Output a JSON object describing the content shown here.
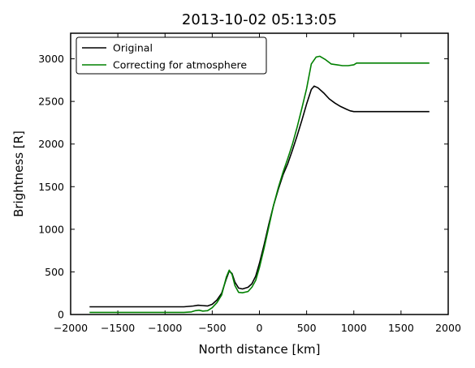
{
  "chart_data": {
    "type": "line",
    "title": "2013-10-02 05:13:05",
    "xlabel": "North distance [km]",
    "ylabel": "Brightness [R]",
    "xlim": [
      -2000,
      2000
    ],
    "ylim": [
      0,
      3300
    ],
    "xticks": [
      -2000,
      -1500,
      -1000,
      -500,
      0,
      500,
      1000,
      1500,
      2000
    ],
    "yticks": [
      0,
      500,
      1000,
      1500,
      2000,
      2500,
      3000
    ],
    "legend_position": "top-left",
    "series": [
      {
        "name": "Original",
        "color": "#000000",
        "points": [
          [
            -1800,
            90
          ],
          [
            -1000,
            90
          ],
          [
            -800,
            90
          ],
          [
            -700,
            100
          ],
          [
            -650,
            108
          ],
          [
            -600,
            105
          ],
          [
            -550,
            100
          ],
          [
            -500,
            120
          ],
          [
            -450,
            170
          ],
          [
            -400,
            250
          ],
          [
            -350,
            420
          ],
          [
            -320,
            510
          ],
          [
            -290,
            480
          ],
          [
            -260,
            380
          ],
          [
            -220,
            310
          ],
          [
            -180,
            300
          ],
          [
            -120,
            320
          ],
          [
            -80,
            360
          ],
          [
            -40,
            450
          ],
          [
            0,
            600
          ],
          [
            50,
            820
          ],
          [
            100,
            1060
          ],
          [
            150,
            1280
          ],
          [
            200,
            1470
          ],
          [
            250,
            1640
          ],
          [
            300,
            1770
          ],
          [
            350,
            1930
          ],
          [
            400,
            2100
          ],
          [
            450,
            2280
          ],
          [
            500,
            2470
          ],
          [
            550,
            2640
          ],
          [
            580,
            2680
          ],
          [
            620,
            2660
          ],
          [
            680,
            2600
          ],
          [
            740,
            2530
          ],
          [
            800,
            2480
          ],
          [
            860,
            2440
          ],
          [
            920,
            2410
          ],
          [
            960,
            2390
          ],
          [
            1000,
            2380
          ],
          [
            1800,
            2380
          ]
        ]
      },
      {
        "name": "Correcting for atmosphere",
        "color": "#008000",
        "points": [
          [
            -1800,
            25
          ],
          [
            -1000,
            25
          ],
          [
            -800,
            25
          ],
          [
            -720,
            30
          ],
          [
            -680,
            45
          ],
          [
            -640,
            50
          ],
          [
            -600,
            40
          ],
          [
            -550,
            45
          ],
          [
            -500,
            80
          ],
          [
            -450,
            140
          ],
          [
            -400,
            230
          ],
          [
            -350,
            440
          ],
          [
            -320,
            520
          ],
          [
            -290,
            470
          ],
          [
            -260,
            340
          ],
          [
            -220,
            260
          ],
          [
            -180,
            255
          ],
          [
            -120,
            270
          ],
          [
            -80,
            320
          ],
          [
            -40,
            400
          ],
          [
            0,
            550
          ],
          [
            50,
            780
          ],
          [
            100,
            1030
          ],
          [
            150,
            1280
          ],
          [
            200,
            1490
          ],
          [
            250,
            1670
          ],
          [
            300,
            1830
          ],
          [
            350,
            2000
          ],
          [
            400,
            2200
          ],
          [
            450,
            2420
          ],
          [
            500,
            2650
          ],
          [
            550,
            2940
          ],
          [
            600,
            3020
          ],
          [
            640,
            3030
          ],
          [
            700,
            2990
          ],
          [
            760,
            2940
          ],
          [
            820,
            2930
          ],
          [
            880,
            2920
          ],
          [
            940,
            2920
          ],
          [
            1000,
            2930
          ],
          [
            1030,
            2950
          ],
          [
            1800,
            2950
          ]
        ]
      }
    ]
  }
}
